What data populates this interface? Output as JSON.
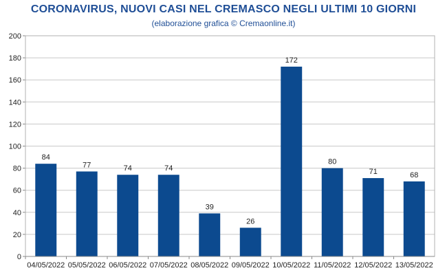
{
  "chart_data": {
    "type": "bar",
    "title": "CORONAVIRUS, NUOVI CASI NEL CREMASCO NEGLI ULTIMI 10 GIORNI",
    "subtitle": "(elaborazione grafica © Cremaonline.it)",
    "categories": [
      "04/05/2022",
      "05/05/2022",
      "06/05/2022",
      "07/05/2022",
      "08/05/2022",
      "09/05/2022",
      "10/05/2022",
      "11/05/2022",
      "12/05/2022",
      "13/05/2022"
    ],
    "values": [
      84,
      77,
      74,
      74,
      39,
      26,
      172,
      80,
      71,
      68
    ],
    "xlabel": "",
    "ylabel": "",
    "ylim": [
      0,
      200
    ],
    "yticks": [
      0,
      20,
      40,
      60,
      80,
      100,
      120,
      140,
      160,
      180,
      200
    ],
    "grid": true,
    "legend": "none",
    "colors": {
      "bar": "#0c4a8f",
      "title": "#1f4e96",
      "grid": "#c8c8c8"
    }
  }
}
